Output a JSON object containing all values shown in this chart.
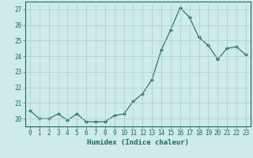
{
  "x": [
    0,
    1,
    2,
    3,
    4,
    5,
    6,
    7,
    8,
    9,
    10,
    11,
    12,
    13,
    14,
    15,
    16,
    17,
    18,
    19,
    20,
    21,
    22,
    23
  ],
  "y": [
    20.5,
    20.0,
    20.0,
    20.3,
    19.9,
    20.3,
    19.8,
    19.8,
    19.8,
    20.2,
    20.3,
    21.1,
    21.6,
    22.5,
    24.4,
    25.7,
    27.1,
    26.5,
    25.2,
    24.7,
    23.8,
    24.5,
    24.6,
    24.1
  ],
  "line_color": "#1a6b5a",
  "marker": "D",
  "marker_size": 2.0,
  "bg_color": "#ceeaea",
  "grid_color": "#aacece",
  "xlabel": "Humidex (Indice chaleur)",
  "ylim": [
    19.5,
    27.5
  ],
  "yticks": [
    20,
    21,
    22,
    23,
    24,
    25,
    26,
    27
  ],
  "xticks": [
    0,
    1,
    2,
    3,
    4,
    5,
    6,
    7,
    8,
    9,
    10,
    11,
    12,
    13,
    14,
    15,
    16,
    17,
    18,
    19,
    20,
    21,
    22,
    23
  ],
  "axis_fontsize": 5.5,
  "label_fontsize": 6.5,
  "linewidth": 0.8
}
